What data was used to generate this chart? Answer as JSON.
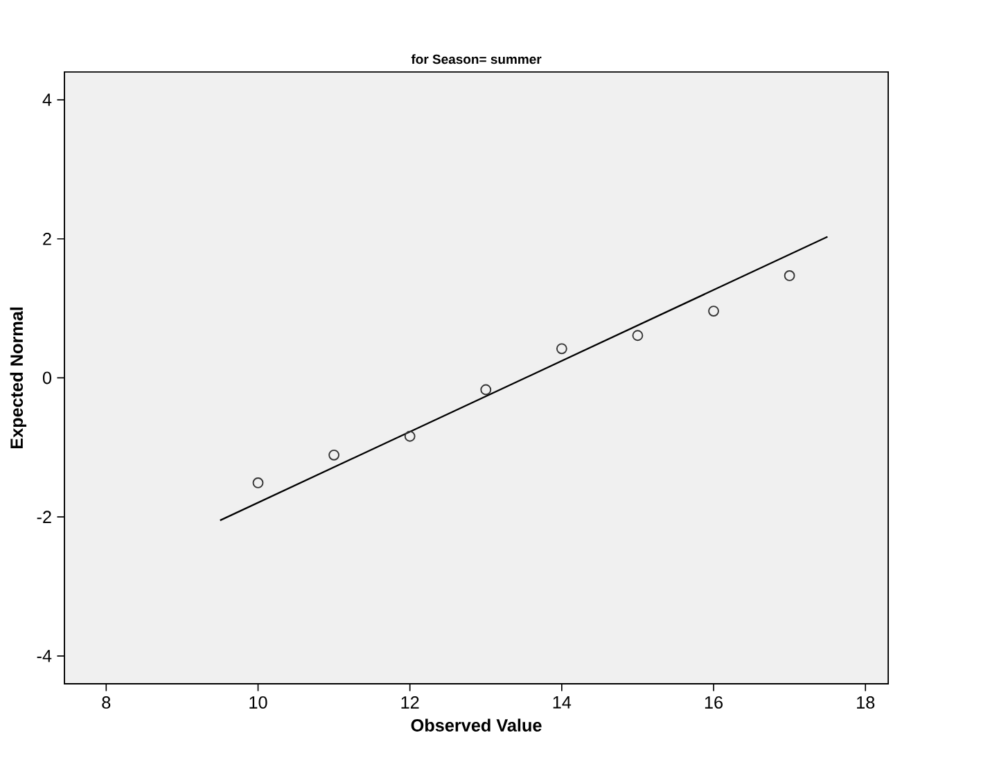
{
  "chart_data": {
    "type": "scatter",
    "title": "for Season= summer",
    "xlabel": "Observed Value",
    "ylabel": "Expected Normal",
    "series": [
      {
        "color": "#333333",
        "marker": "circle",
        "x": [
          10,
          11,
          12,
          13,
          14,
          15,
          16,
          17
        ],
        "values": [
          -1.51,
          -1.11,
          -0.84,
          -0.17,
          0.42,
          0.61,
          0.96,
          1.47
        ]
      },
      {
        "type": "line",
        "color": "#000000",
        "x": [
          9.5,
          17.5
        ],
        "values": [
          -2.05,
          2.03
        ]
      }
    ],
    "xlim": [
      7.45,
      18.3
    ],
    "ylim": [
      -4.4,
      4.4
    ],
    "xticks": [
      8,
      10,
      12,
      14,
      16,
      18
    ],
    "yticks": [
      -4,
      -2,
      0,
      2,
      4
    ],
    "grid": false
  }
}
